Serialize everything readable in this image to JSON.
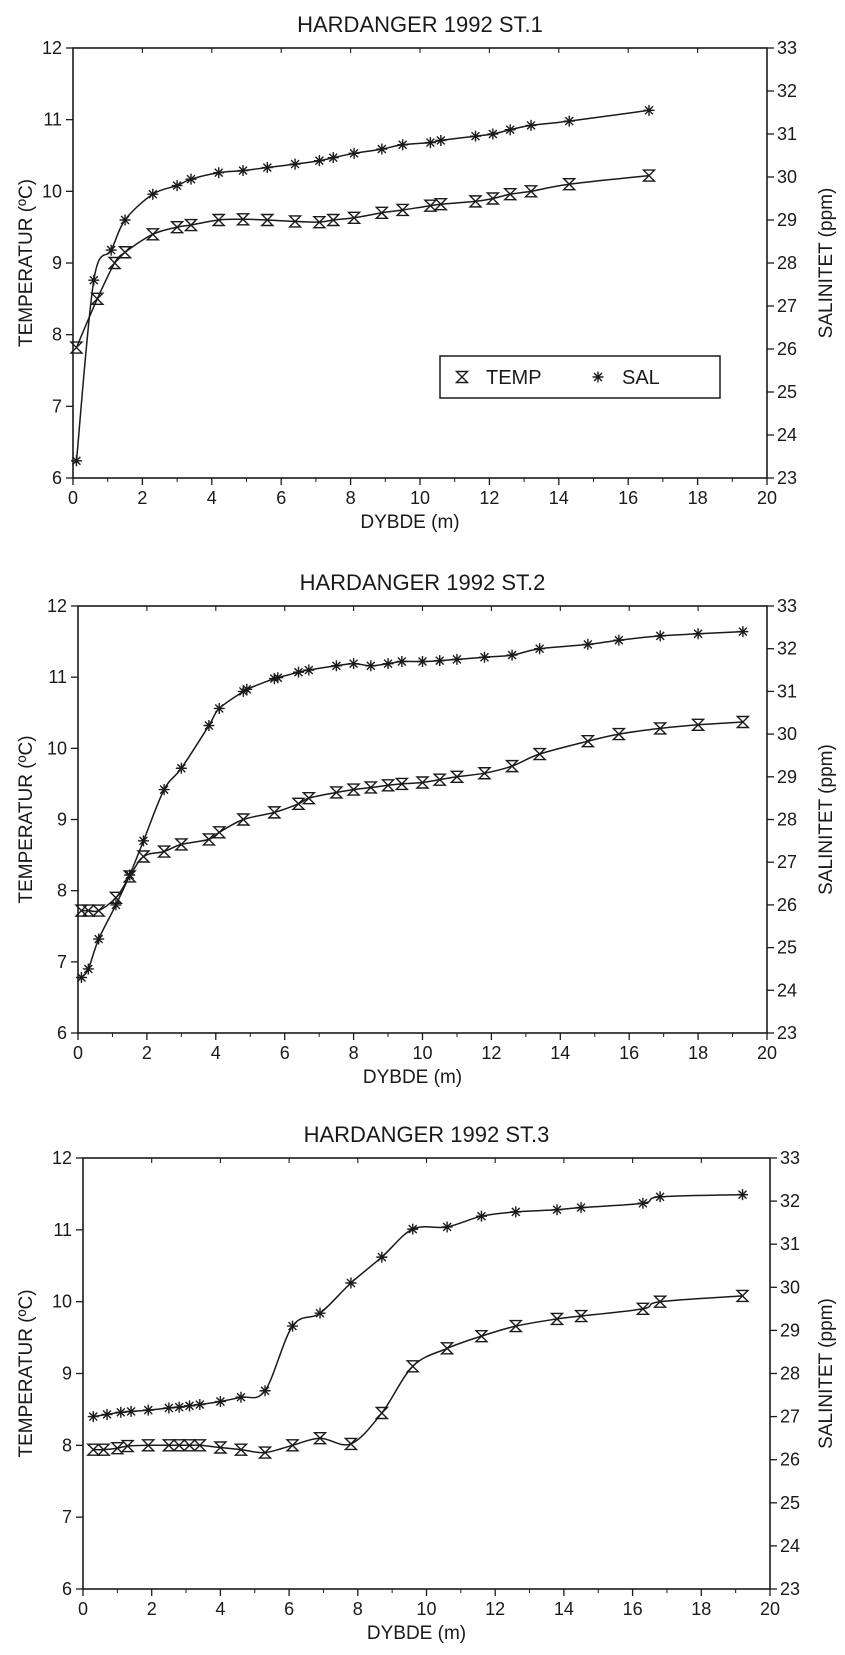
{
  "chart_data": [
    {
      "type": "line",
      "title": "HARDANGER 1992  ST.1",
      "xlabel": "DYBDE (m)",
      "ylabel": "TEMPERATUR (ºC)",
      "y2label": "SALINITET (ppm)",
      "xlim": [
        0,
        20
      ],
      "ylim": [
        6,
        12
      ],
      "y2lim": [
        23,
        33
      ],
      "xticks": [
        "0",
        "2",
        "4",
        "6",
        "8",
        "10",
        "12",
        "14",
        "16",
        "18",
        "20"
      ],
      "yticks": [
        "6",
        "7",
        "8",
        "9",
        "10",
        "11",
        "12"
      ],
      "y2ticks": [
        "23",
        "24",
        "25",
        "26",
        "27",
        "28",
        "29",
        "30",
        "31",
        "32",
        "33"
      ],
      "grid": false,
      "legend": {
        "placement": "inside-lower-right",
        "entries": [
          "TEMP",
          "SAL"
        ]
      },
      "series": [
        {
          "name": "TEMP",
          "axis": "left",
          "marker": "hourglass",
          "x": [
            0.1,
            0.7,
            1.2,
            1.5,
            2.3,
            3.0,
            3.4,
            4.2,
            4.9,
            5.6,
            6.4,
            7.1,
            7.5,
            8.1,
            8.9,
            9.5,
            10.3,
            10.6,
            11.6,
            12.1,
            12.6,
            13.2,
            14.3,
            16.6
          ],
          "y": [
            7.82,
            8.5,
            9.0,
            9.15,
            9.4,
            9.5,
            9.53,
            9.6,
            9.61,
            9.6,
            9.58,
            9.57,
            9.6,
            9.63,
            9.7,
            9.74,
            9.8,
            9.82,
            9.86,
            9.9,
            9.96,
            10.0,
            10.1,
            10.22
          ]
        },
        {
          "name": "SAL",
          "axis": "right",
          "marker": "asterisk",
          "x": [
            0.1,
            0.6,
            1.1,
            1.5,
            2.3,
            3.0,
            3.4,
            4.2,
            4.9,
            5.6,
            6.4,
            7.1,
            7.5,
            8.1,
            8.9,
            9.5,
            10.3,
            10.6,
            11.6,
            12.1,
            12.6,
            13.2,
            14.3,
            16.6
          ],
          "y": [
            23.4,
            27.6,
            28.3,
            29.0,
            29.6,
            29.8,
            29.95,
            30.1,
            30.15,
            30.22,
            30.3,
            30.38,
            30.45,
            30.55,
            30.65,
            30.75,
            30.8,
            30.85,
            30.95,
            31.0,
            31.1,
            31.2,
            31.3,
            31.55
          ]
        }
      ]
    },
    {
      "type": "line",
      "title": "HARDANGER 1992  ST.2",
      "xlabel": "DYBDE (m)",
      "ylabel": "TEMPERATUR (ºC)",
      "y2label": "SALINITET (ppm)",
      "xlim": [
        0,
        20
      ],
      "ylim": [
        6,
        12
      ],
      "y2lim": [
        23,
        33
      ],
      "xticks": [
        "0",
        "2",
        "4",
        "6",
        "8",
        "10",
        "12",
        "14",
        "16",
        "18",
        "20"
      ],
      "yticks": [
        "6",
        "7",
        "8",
        "9",
        "10",
        "11",
        "12"
      ],
      "y2ticks": [
        "23",
        "24",
        "25",
        "26",
        "27",
        "28",
        "29",
        "30",
        "31",
        "32",
        "33"
      ],
      "grid": false,
      "series": [
        {
          "name": "TEMP",
          "axis": "left",
          "marker": "hourglass",
          "x": [
            0.1,
            0.3,
            0.6,
            1.1,
            1.5,
            1.9,
            2.5,
            3.0,
            3.8,
            4.1,
            4.8,
            5.7,
            6.4,
            6.7,
            7.5,
            8.0,
            8.5,
            9.0,
            9.4,
            10.0,
            10.5,
            11.0,
            11.8,
            12.6,
            13.4,
            14.8,
            15.7,
            16.9,
            18.0,
            19.3
          ],
          "y": [
            7.72,
            7.72,
            7.72,
            7.9,
            8.2,
            8.48,
            8.55,
            8.65,
            8.72,
            8.82,
            9.0,
            9.1,
            9.22,
            9.3,
            9.38,
            9.42,
            9.45,
            9.48,
            9.5,
            9.52,
            9.56,
            9.6,
            9.65,
            9.75,
            9.92,
            10.1,
            10.2,
            10.28,
            10.33,
            10.37
          ]
        },
        {
          "name": "SAL",
          "axis": "right",
          "marker": "asterisk",
          "x": [
            0.1,
            0.3,
            0.6,
            1.1,
            1.5,
            1.9,
            2.5,
            3.0,
            3.8,
            4.1,
            4.8,
            4.9,
            5.7,
            5.8,
            6.4,
            6.7,
            7.5,
            8.0,
            8.5,
            9.0,
            9.4,
            10.0,
            10.5,
            11.0,
            11.8,
            12.6,
            13.4,
            14.8,
            15.7,
            16.9,
            18.0,
            19.3
          ],
          "y": [
            24.3,
            24.5,
            25.2,
            26.0,
            26.7,
            27.5,
            28.7,
            29.2,
            30.2,
            30.6,
            31.0,
            31.05,
            31.3,
            31.32,
            31.45,
            31.5,
            31.6,
            31.65,
            31.6,
            31.65,
            31.7,
            31.7,
            31.72,
            31.75,
            31.8,
            31.85,
            32.0,
            32.1,
            32.2,
            32.3,
            32.35,
            32.4
          ]
        }
      ]
    },
    {
      "type": "line",
      "title": "HARDANGER 1992  ST.3",
      "xlabel": "DYBDE (m)",
      "ylabel": "TEMPERATUR (ºC)",
      "y2label": "SALINITET (ppm)",
      "xlim": [
        0,
        20
      ],
      "ylim": [
        6,
        12
      ],
      "y2lim": [
        23,
        33
      ],
      "xticks": [
        "0",
        "2",
        "4",
        "6",
        "8",
        "10",
        "12",
        "14",
        "16",
        "18",
        "20"
      ],
      "yticks": [
        "6",
        "7",
        "8",
        "9",
        "10",
        "11",
        "12"
      ],
      "y2ticks": [
        "23",
        "24",
        "25",
        "26",
        "27",
        "28",
        "29",
        "30",
        "31",
        "32",
        "33"
      ],
      "grid": false,
      "series": [
        {
          "name": "TEMP",
          "axis": "left",
          "marker": "hourglass",
          "x": [
            0.3,
            0.6,
            1.0,
            1.3,
            1.9,
            2.5,
            2.8,
            3.1,
            3.4,
            4.0,
            4.6,
            5.3,
            6.1,
            6.9,
            7.8,
            8.7,
            9.6,
            10.6,
            11.6,
            12.6,
            13.8,
            14.5,
            16.3,
            16.8,
            19.2
          ],
          "y": [
            7.94,
            7.94,
            7.96,
            7.99,
            8.0,
            8.0,
            8.0,
            8.0,
            8.0,
            7.97,
            7.94,
            7.9,
            8.0,
            8.1,
            8.02,
            8.45,
            9.1,
            9.35,
            9.52,
            9.66,
            9.76,
            9.8,
            9.9,
            10.0,
            10.08
          ]
        },
        {
          "name": "SAL",
          "axis": "right",
          "marker": "asterisk",
          "x": [
            0.3,
            0.7,
            1.1,
            1.4,
            1.9,
            2.5,
            2.8,
            3.1,
            3.4,
            4.0,
            4.6,
            5.3,
            6.1,
            6.9,
            7.8,
            8.7,
            9.6,
            10.6,
            11.6,
            12.6,
            13.8,
            14.5,
            16.3,
            16.8,
            19.2
          ],
          "y": [
            27.0,
            27.05,
            27.1,
            27.12,
            27.15,
            27.2,
            27.22,
            27.25,
            27.28,
            27.35,
            27.45,
            27.6,
            29.1,
            29.4,
            30.1,
            30.7,
            31.35,
            31.4,
            31.65,
            31.75,
            31.8,
            31.85,
            31.95,
            32.1,
            32.15
          ]
        }
      ]
    }
  ]
}
